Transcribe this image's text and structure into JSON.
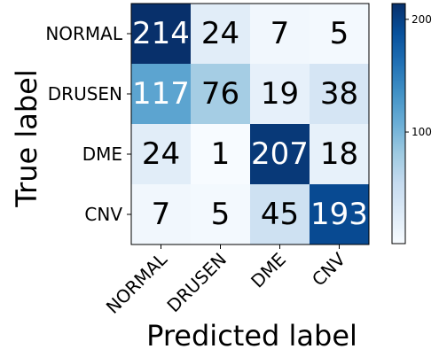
{
  "chart_data": {
    "type": "heatmap",
    "rows": [
      "NORMAL",
      "DRUSEN",
      "DME",
      "CNV"
    ],
    "columns": [
      "NORMAL",
      "DRUSEN",
      "DME",
      "CNV"
    ],
    "values": [
      [
        214,
        24,
        7,
        5
      ],
      [
        117,
        76,
        19,
        38
      ],
      [
        24,
        1,
        207,
        18
      ],
      [
        7,
        5,
        45,
        193
      ]
    ],
    "xlabel": "Predicted label",
    "ylabel": "True label",
    "colormap": "Blues",
    "vmin": 1,
    "vmax": 214,
    "colorbar_ticks": [
      100,
      200
    ],
    "text_color_light": "#ffffff",
    "text_color_dark": "#000000"
  }
}
